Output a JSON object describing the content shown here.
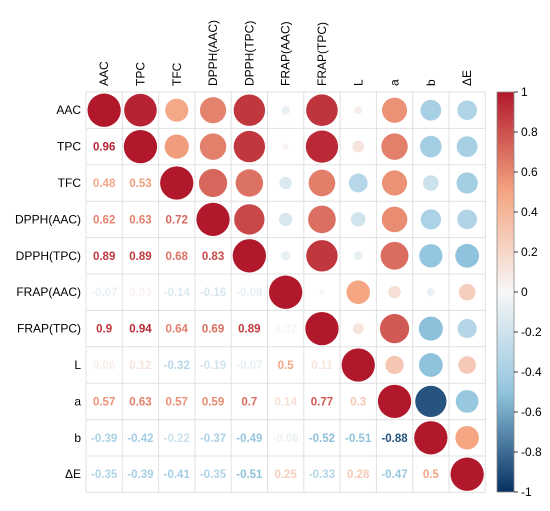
{
  "chart_data": {
    "type": "heatmap",
    "variables": [
      "AAC",
      "TPC",
      "TFC",
      "DPPH(AAC)",
      "DPPH(TPC)",
      "FRAP(AAC)",
      "FRAP(TPC)",
      "L",
      "a",
      "b",
      "ΔE"
    ],
    "matrix": [
      [
        1,
        0.96,
        0.48,
        0.62,
        0.89,
        -0.07,
        0.9,
        0.06,
        0.57,
        -0.39,
        -0.35
      ],
      [
        0.96,
        1,
        0.53,
        0.63,
        0.89,
        0.03,
        0.94,
        0.12,
        0.63,
        -0.42,
        -0.39
      ],
      [
        0.48,
        0.53,
        1,
        0.72,
        0.68,
        -0.14,
        0.64,
        -0.32,
        0.57,
        -0.22,
        -0.41
      ],
      [
        0.62,
        0.63,
        0.72,
        1,
        0.83,
        -0.16,
        0.69,
        -0.19,
        0.59,
        -0.37,
        -0.35
      ],
      [
        0.89,
        0.89,
        0.68,
        0.83,
        1,
        -0.08,
        0.89,
        -0.07,
        0.7,
        -0.49,
        -0.51
      ],
      [
        -0.07,
        0.03,
        -0.14,
        -0.16,
        -0.08,
        1,
        0.02,
        0.5,
        0.14,
        -0.06,
        0.25
      ],
      [
        0.9,
        0.94,
        0.64,
        0.69,
        0.89,
        0.02,
        1,
        0.11,
        0.77,
        -0.52,
        -0.33
      ],
      [
        0.06,
        0.12,
        -0.32,
        -0.19,
        -0.07,
        0.5,
        0.11,
        1,
        0.3,
        -0.51,
        0.28
      ],
      [
        0.57,
        0.63,
        0.57,
        0.59,
        0.7,
        0.14,
        0.77,
        0.3,
        1,
        -0.88,
        -0.47
      ],
      [
        -0.39,
        -0.42,
        -0.22,
        -0.37,
        -0.49,
        -0.06,
        -0.52,
        -0.51,
        -0.88,
        1,
        0.5
      ],
      [
        -0.35,
        -0.39,
        -0.41,
        -0.35,
        -0.51,
        0.25,
        -0.33,
        0.28,
        -0.47,
        0.5,
        1
      ]
    ],
    "lower_triangle": "numbers",
    "upper_triangle": "circles",
    "color_range": [
      -1,
      1
    ],
    "colorbar_ticks": [
      "1",
      "0.8",
      "0.6",
      "0.4",
      "0.2",
      "0",
      "-0.2",
      "-0.4",
      "-0.6",
      "-0.8",
      "-1"
    ],
    "colors": {
      "negative": "#053061",
      "neutral": "#F7F7F7",
      "positive": "#B2182B"
    },
    "grid": true,
    "legend_position": "right"
  }
}
